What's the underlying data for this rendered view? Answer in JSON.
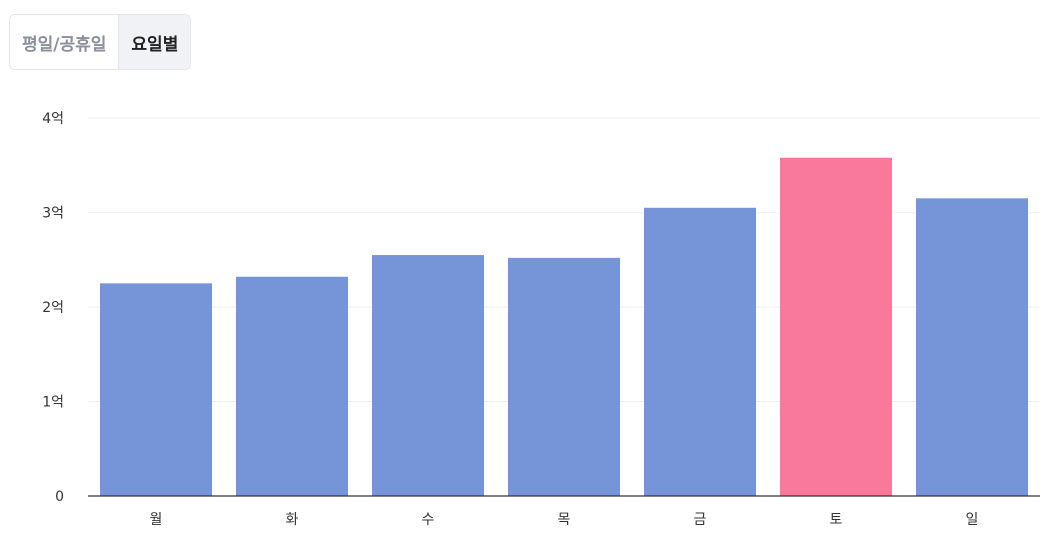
{
  "toggle": {
    "options": [
      "평일/공휴일",
      "요일별"
    ],
    "selected": "요일별"
  },
  "chart_data": {
    "type": "bar",
    "categories": [
      "월",
      "화",
      "수",
      "목",
      "금",
      "토",
      "일"
    ],
    "values": [
      2.25,
      2.32,
      2.55,
      2.52,
      3.05,
      3.58,
      3.15
    ],
    "unit": "억",
    "ylim": [
      0,
      4
    ],
    "yticks": [
      {
        "v": 0,
        "label": "0"
      },
      {
        "v": 1,
        "label": "1억"
      },
      {
        "v": 2,
        "label": "2억"
      },
      {
        "v": 3,
        "label": "3억"
      },
      {
        "v": 4,
        "label": "4억"
      }
    ],
    "grid": true,
    "colors": {
      "default": "#6a8cd6",
      "highlight": "#f86e93"
    },
    "highlight_category": "토"
  }
}
